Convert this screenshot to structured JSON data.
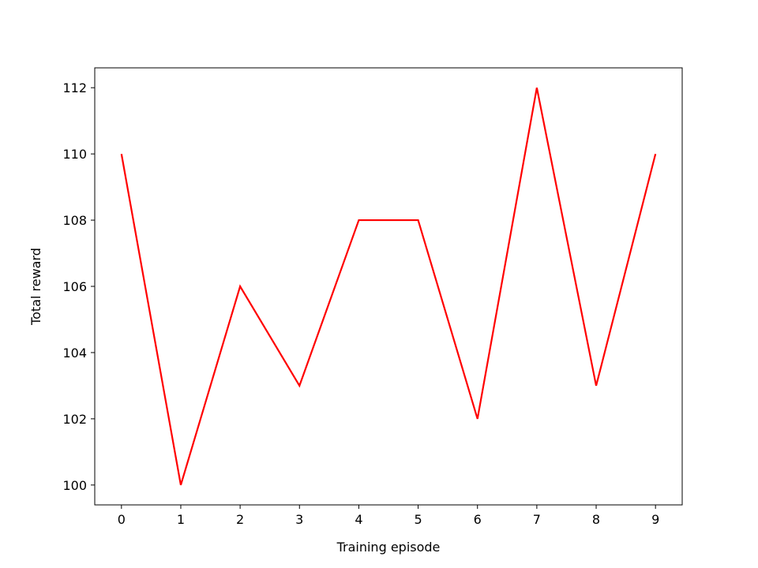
{
  "chart_data": {
    "type": "line",
    "xlabel": "Training episode",
    "ylabel": "Total reward",
    "x": [
      0,
      1,
      2,
      3,
      4,
      5,
      6,
      7,
      8,
      9
    ],
    "series": [
      {
        "values": [
          110,
          100,
          106,
          103,
          108,
          108,
          102,
          112,
          103,
          110
        ],
        "color": "#ff0000"
      }
    ],
    "xlim": [
      -0.45,
      9.45
    ],
    "ylim": [
      99.4,
      112.6
    ],
    "xticks": [
      0,
      1,
      2,
      3,
      4,
      5,
      6,
      7,
      8,
      9
    ],
    "yticks": [
      100,
      102,
      104,
      106,
      108,
      110,
      112
    ],
    "grid": false
  }
}
